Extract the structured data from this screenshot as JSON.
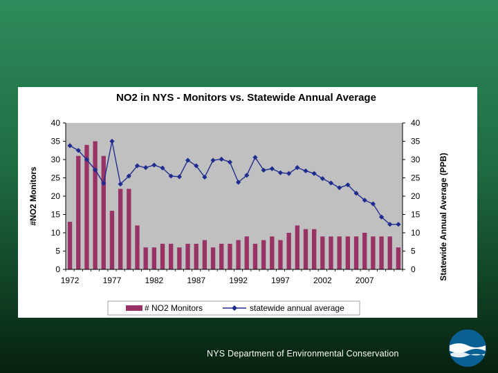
{
  "footer": {
    "text": "NYS Department of Environmental  Conservation"
  },
  "logo": {
    "icon": "dec-wave-logo-icon",
    "colors": {
      "outer": "#0a5f93",
      "band": "#ffffff"
    }
  },
  "colors": {
    "bar": "#993366",
    "line": "#1f2c8f",
    "plot_bg": "#c0c0c0"
  },
  "chart_data": {
    "type": "bar",
    "title": "NO2 in NYS -  Monitors vs.  Statewide Annual Average",
    "x": [
      1972,
      1973,
      1974,
      1975,
      1976,
      1977,
      1978,
      1979,
      1980,
      1981,
      1982,
      1983,
      1984,
      1985,
      1986,
      1987,
      1988,
      1989,
      1990,
      1991,
      1992,
      1993,
      1994,
      1995,
      1996,
      1997,
      1998,
      1999,
      2000,
      2001,
      2002,
      2003,
      2004,
      2005,
      2006,
      2007,
      2008,
      2009,
      2010,
      2011
    ],
    "x_tick_labels": [
      "1972",
      "1977",
      "1982",
      "1987",
      "1992",
      "1997",
      "2002",
      "2007"
    ],
    "ylabel": "#NO2 Monitors",
    "y2label": "Statewide Annual Average (PPB)",
    "ylim": [
      0,
      40
    ],
    "y2lim": [
      0,
      40
    ],
    "y_ticks": [
      "0",
      "5",
      "10",
      "15",
      "20",
      "25",
      "30",
      "35",
      "40"
    ],
    "y2_ticks": [
      "0",
      "5",
      "10",
      "15",
      "20",
      "25",
      "30",
      "35",
      "40"
    ],
    "grid": false,
    "legend_position": "bottom",
    "series": [
      {
        "name": "# NO2 Monitors",
        "type": "bar",
        "axis": "left",
        "values": [
          13,
          31,
          34,
          35,
          31,
          16,
          22,
          22,
          12,
          6,
          6,
          7,
          7,
          6,
          7,
          7,
          8,
          6,
          7,
          7,
          8,
          9,
          7,
          8,
          9,
          8,
          10,
          12,
          11,
          11,
          9,
          9,
          9,
          9,
          9,
          10,
          9,
          9,
          9,
          6
        ]
      },
      {
        "name": "statewide annual average",
        "type": "line",
        "axis": "right",
        "values": [
          33.8,
          32.5,
          30,
          27.2,
          23.5,
          35,
          23.3,
          25.5,
          28.3,
          27.8,
          28.5,
          27.7,
          25.5,
          25.3,
          29.8,
          28.3,
          25.2,
          29.8,
          30.1,
          29.3,
          23.8,
          25.7,
          30.6,
          27.1,
          27.5,
          26.4,
          26.2,
          27.8,
          26.9,
          26.2,
          24.8,
          23.6,
          22.3,
          23.1,
          20.8,
          18.9,
          17.9,
          14.3,
          12.3,
          12.3
        ]
      }
    ]
  }
}
